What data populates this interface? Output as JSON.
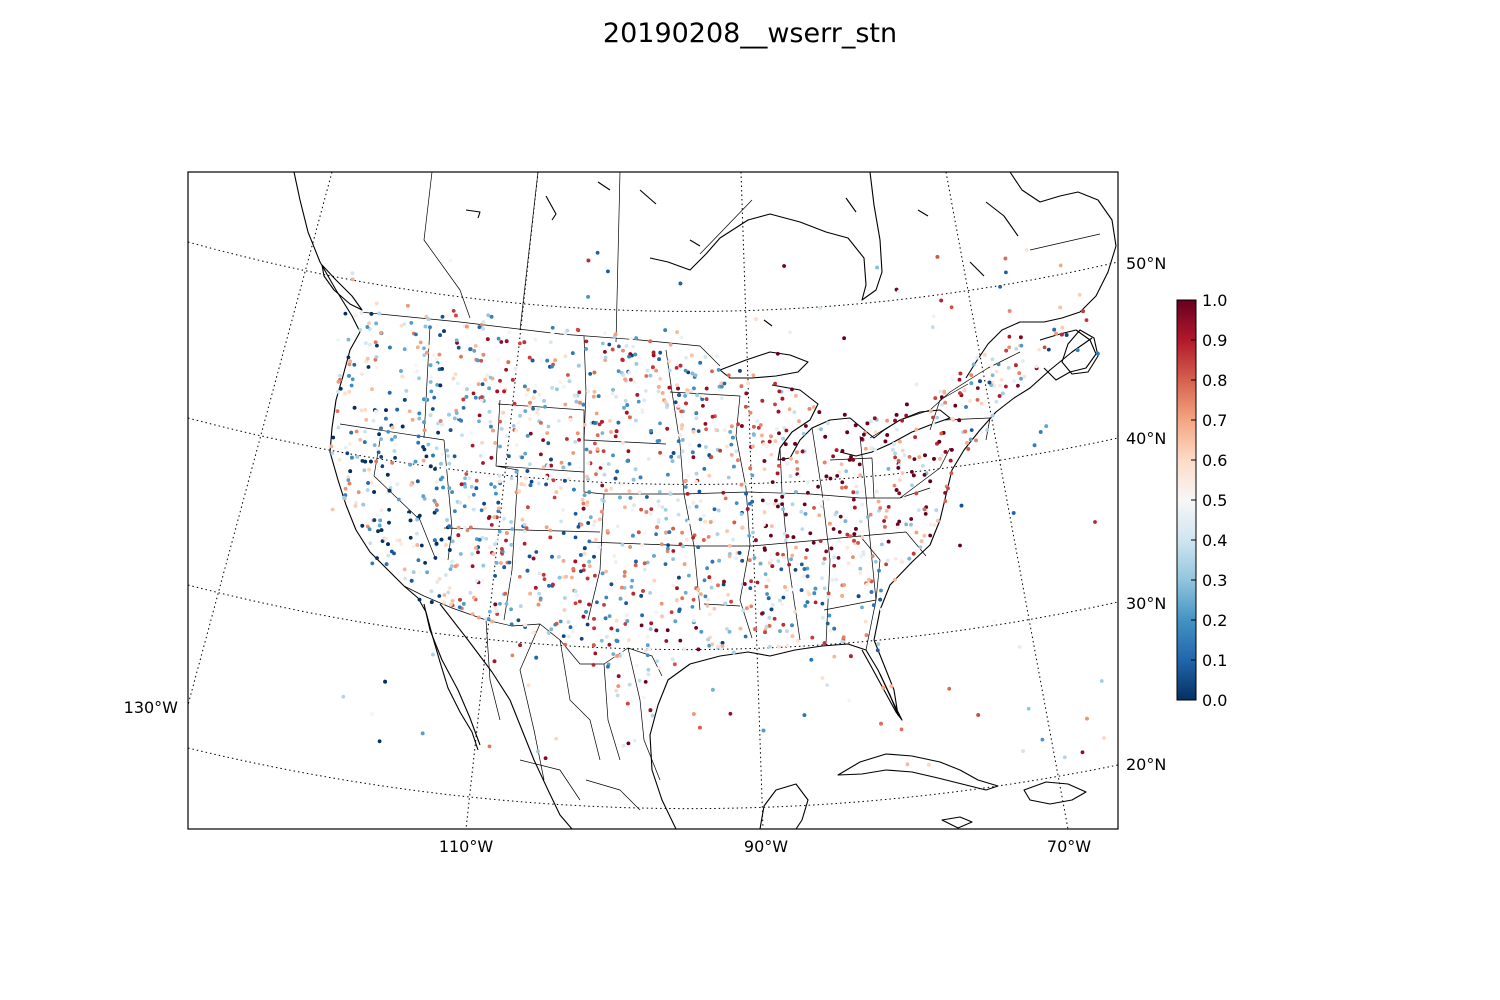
{
  "title": "20190208__wserr_stn",
  "map": {
    "projection": "lambert-conformal",
    "region": "contiguous United States, southern Canada, northern Mexico, Cuba",
    "meridian_labels": [
      "130°W",
      "110°W",
      "90°W",
      "70°W"
    ],
    "parallel_labels": [
      "50°N",
      "40°N",
      "30°N",
      "20°N"
    ],
    "graticule": "dotted",
    "station_marker": "small filled circles"
  },
  "colorbar": {
    "colormap": "RdBu_r",
    "range": [
      0.0,
      1.0
    ],
    "ticks": [
      "1.0",
      "0.9",
      "0.8",
      "0.7",
      "0.6",
      "0.5",
      "0.4",
      "0.3",
      "0.2",
      "0.1",
      "0.0"
    ],
    "colors": {
      "0.0": "#053061",
      "0.1": "#2166ac",
      "0.2": "#4393c3",
      "0.3": "#92c5de",
      "0.4": "#d1e5f0",
      "0.5": "#f7f7f7",
      "0.6": "#fddbc7",
      "0.7": "#f4a582",
      "0.8": "#d6604d",
      "0.9": "#b2182b",
      "1.0": "#67001f"
    }
  }
}
